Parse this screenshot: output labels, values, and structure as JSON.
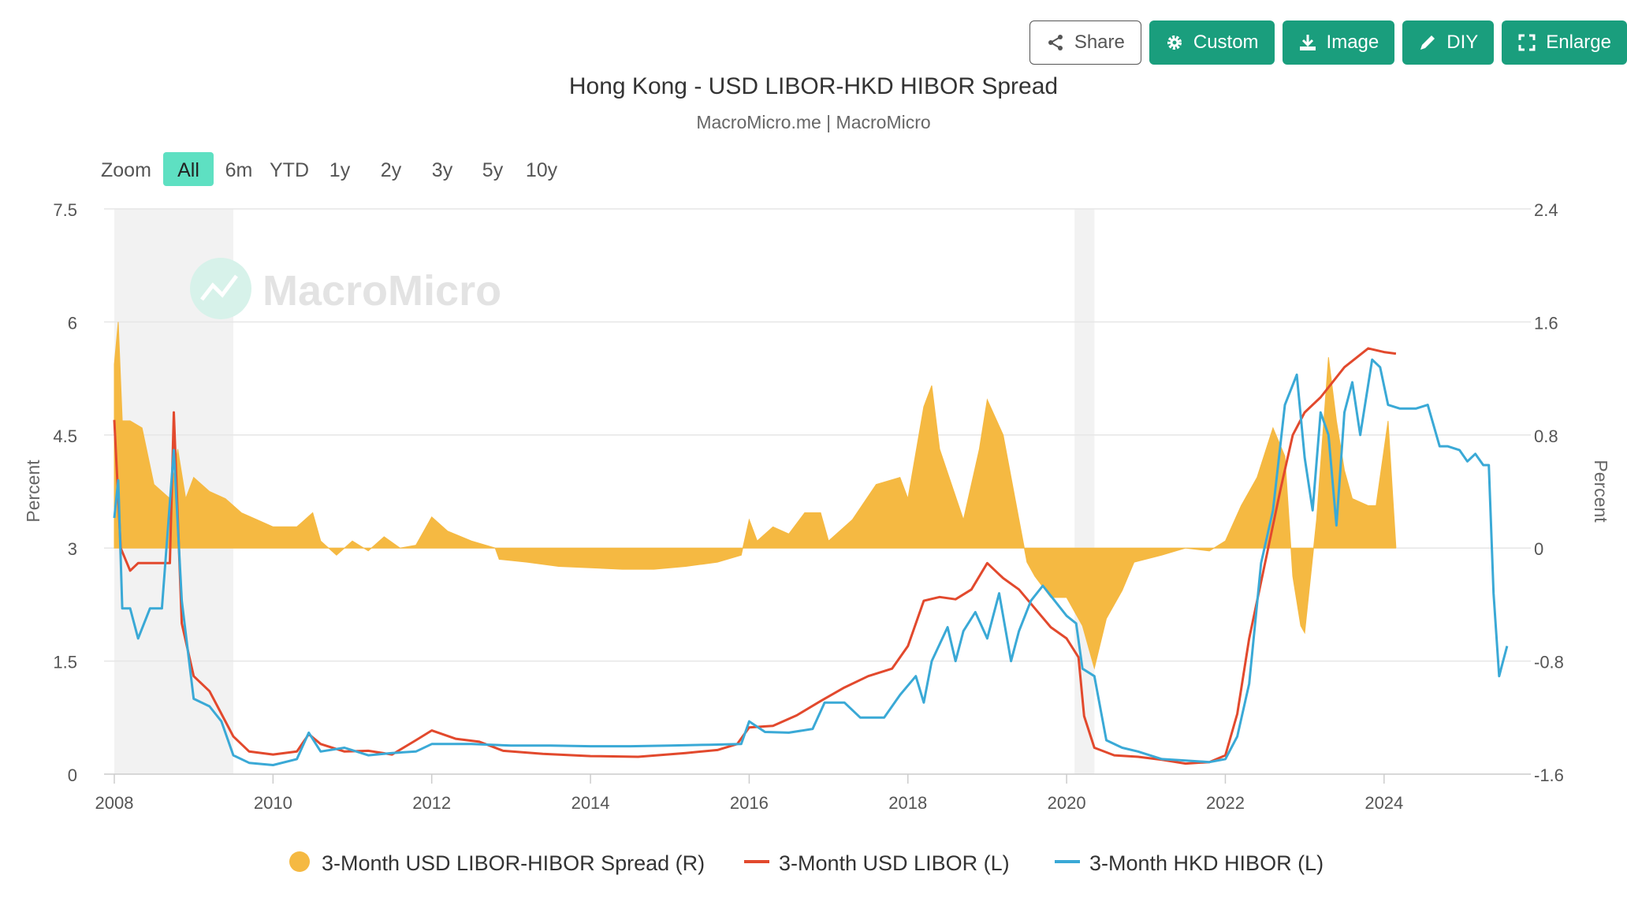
{
  "toolbar": {
    "share": {
      "label": "Share",
      "icon": "share-icon"
    },
    "custom": {
      "label": "Custom",
      "icon": "gear-icon"
    },
    "image": {
      "label": "Image",
      "icon": "download-icon"
    },
    "diy": {
      "label": "DIY",
      "icon": "pencil-icon"
    },
    "enlarge": {
      "label": "Enlarge",
      "icon": "expand-icon"
    }
  },
  "colors": {
    "accent": "#1a9e7d",
    "zoom_active": "#5ee0c2",
    "spread": "#f5b942",
    "libor": "#e2492d",
    "hibor": "#3aa9d6",
    "recession": "#f2f2f2"
  },
  "zoom": {
    "label": "Zoom",
    "options": [
      "All",
      "6m",
      "YTD",
      "1y",
      "2y",
      "3y",
      "5y",
      "10y"
    ],
    "selected": "All"
  },
  "watermark": "MacroMicro",
  "chart_data": {
    "type": "line",
    "title": "Hong Kong - USD LIBOR-HKD HIBOR Spread",
    "subtitle": "MacroMicro.me | MacroMicro",
    "xlim": [
      2008.0,
      2025.75
    ],
    "x_ticks": [
      "2008",
      "2010",
      "2012",
      "2014",
      "2016",
      "2018",
      "2020",
      "2022",
      "2024"
    ],
    "y_left": {
      "label": "Percent",
      "lim": [
        0,
        7.5
      ],
      "ticks": [
        "0",
        "1.5",
        "3",
        "4.5",
        "6",
        "7.5"
      ]
    },
    "y_right": {
      "label": "Percent",
      "lim": [
        -1.6,
        2.4
      ],
      "ticks": [
        "-1.6",
        "-0.8",
        "0",
        "0.8",
        "1.6",
        "2.4"
      ]
    },
    "recessions": [
      [
        2008.0,
        2009.5
      ],
      [
        2020.1,
        2020.35
      ]
    ],
    "legend_position": "bottom",
    "series": [
      {
        "name": "3-Month USD LIBOR-HIBOR Spread (R)",
        "axis": "right",
        "kind": "area",
        "color": "#f5b942",
        "points": [
          [
            2008.0,
            1.3
          ],
          [
            2008.05,
            1.6
          ],
          [
            2008.1,
            0.9
          ],
          [
            2008.2,
            0.9
          ],
          [
            2008.35,
            0.85
          ],
          [
            2008.5,
            0.45
          ],
          [
            2008.7,
            0.35
          ],
          [
            2008.8,
            0.7
          ],
          [
            2008.9,
            0.35
          ],
          [
            2009.0,
            0.5
          ],
          [
            2009.2,
            0.4
          ],
          [
            2009.4,
            0.35
          ],
          [
            2009.6,
            0.25
          ],
          [
            2009.8,
            0.2
          ],
          [
            2010.0,
            0.15
          ],
          [
            2010.3,
            0.15
          ],
          [
            2010.5,
            0.25
          ],
          [
            2010.6,
            0.05
          ],
          [
            2010.8,
            -0.05
          ],
          [
            2011.0,
            0.05
          ],
          [
            2011.2,
            -0.02
          ],
          [
            2011.4,
            0.08
          ],
          [
            2011.6,
            0.0
          ],
          [
            2011.8,
            0.02
          ],
          [
            2012.0,
            0.22
          ],
          [
            2012.2,
            0.12
          ],
          [
            2012.5,
            0.05
          ],
          [
            2012.8,
            0.0
          ],
          [
            2012.85,
            -0.08
          ],
          [
            2013.2,
            -0.1
          ],
          [
            2013.6,
            -0.13
          ],
          [
            2014.0,
            -0.14
          ],
          [
            2014.4,
            -0.15
          ],
          [
            2014.8,
            -0.15
          ],
          [
            2015.2,
            -0.13
          ],
          [
            2015.6,
            -0.1
          ],
          [
            2015.9,
            -0.05
          ],
          [
            2016.0,
            0.2
          ],
          [
            2016.1,
            0.05
          ],
          [
            2016.3,
            0.15
          ],
          [
            2016.5,
            0.1
          ],
          [
            2016.7,
            0.25
          ],
          [
            2016.9,
            0.25
          ],
          [
            2017.0,
            0.05
          ],
          [
            2017.3,
            0.2
          ],
          [
            2017.6,
            0.45
          ],
          [
            2017.9,
            0.5
          ],
          [
            2018.0,
            0.35
          ],
          [
            2018.2,
            1.0
          ],
          [
            2018.3,
            1.15
          ],
          [
            2018.4,
            0.7
          ],
          [
            2018.55,
            0.45
          ],
          [
            2018.7,
            0.2
          ],
          [
            2018.9,
            0.7
          ],
          [
            2019.0,
            1.05
          ],
          [
            2019.2,
            0.8
          ],
          [
            2019.4,
            0.2
          ],
          [
            2019.5,
            -0.1
          ],
          [
            2019.6,
            -0.2
          ],
          [
            2019.8,
            -0.35
          ],
          [
            2020.0,
            -0.35
          ],
          [
            2020.2,
            -0.55
          ],
          [
            2020.35,
            -0.85
          ],
          [
            2020.5,
            -0.5
          ],
          [
            2020.7,
            -0.3
          ],
          [
            2020.85,
            -0.1
          ],
          [
            2021.2,
            -0.05
          ],
          [
            2021.5,
            0.0
          ],
          [
            2021.8,
            -0.02
          ],
          [
            2022.0,
            0.05
          ],
          [
            2022.2,
            0.3
          ],
          [
            2022.4,
            0.5
          ],
          [
            2022.6,
            0.85
          ],
          [
            2022.75,
            0.65
          ],
          [
            2022.85,
            -0.2
          ],
          [
            2022.95,
            -0.55
          ],
          [
            2023.0,
            -0.6
          ],
          [
            2023.15,
            0.2
          ],
          [
            2023.3,
            1.35
          ],
          [
            2023.4,
            0.9
          ],
          [
            2023.5,
            0.55
          ],
          [
            2023.6,
            0.35
          ],
          [
            2023.8,
            0.3
          ],
          [
            2023.9,
            0.3
          ],
          [
            2024.05,
            0.9
          ],
          [
            2024.15,
            0.0
          ]
        ]
      },
      {
        "name": "3-Month USD LIBOR (L)",
        "axis": "left",
        "kind": "line",
        "color": "#e2492d",
        "points": [
          [
            2008.0,
            4.7
          ],
          [
            2008.08,
            3.0
          ],
          [
            2008.2,
            2.7
          ],
          [
            2008.3,
            2.8
          ],
          [
            2008.5,
            2.8
          ],
          [
            2008.7,
            2.8
          ],
          [
            2008.75,
            4.8
          ],
          [
            2008.85,
            2.0
          ],
          [
            2009.0,
            1.3
          ],
          [
            2009.2,
            1.1
          ],
          [
            2009.35,
            0.8
          ],
          [
            2009.5,
            0.5
          ],
          [
            2009.7,
            0.3
          ],
          [
            2010.0,
            0.26
          ],
          [
            2010.3,
            0.3
          ],
          [
            2010.45,
            0.53
          ],
          [
            2010.6,
            0.4
          ],
          [
            2010.9,
            0.3
          ],
          [
            2011.2,
            0.31
          ],
          [
            2011.5,
            0.26
          ],
          [
            2011.8,
            0.45
          ],
          [
            2012.0,
            0.58
          ],
          [
            2012.3,
            0.47
          ],
          [
            2012.6,
            0.43
          ],
          [
            2012.9,
            0.31
          ],
          [
            2013.4,
            0.27
          ],
          [
            2014.0,
            0.24
          ],
          [
            2014.6,
            0.23
          ],
          [
            2015.2,
            0.28
          ],
          [
            2015.6,
            0.32
          ],
          [
            2015.85,
            0.4
          ],
          [
            2016.0,
            0.62
          ],
          [
            2016.3,
            0.64
          ],
          [
            2016.6,
            0.78
          ],
          [
            2016.9,
            0.97
          ],
          [
            2017.2,
            1.15
          ],
          [
            2017.5,
            1.3
          ],
          [
            2017.8,
            1.4
          ],
          [
            2018.0,
            1.7
          ],
          [
            2018.2,
            2.3
          ],
          [
            2018.4,
            2.35
          ],
          [
            2018.6,
            2.32
          ],
          [
            2018.8,
            2.45
          ],
          [
            2019.0,
            2.8
          ],
          [
            2019.2,
            2.6
          ],
          [
            2019.4,
            2.45
          ],
          [
            2019.6,
            2.2
          ],
          [
            2019.8,
            1.95
          ],
          [
            2020.0,
            1.8
          ],
          [
            2020.15,
            1.55
          ],
          [
            2020.22,
            0.77
          ],
          [
            2020.35,
            0.35
          ],
          [
            2020.6,
            0.25
          ],
          [
            2020.9,
            0.23
          ],
          [
            2021.2,
            0.19
          ],
          [
            2021.5,
            0.14
          ],
          [
            2021.8,
            0.16
          ],
          [
            2022.0,
            0.25
          ],
          [
            2022.15,
            0.8
          ],
          [
            2022.3,
            1.8
          ],
          [
            2022.5,
            2.8
          ],
          [
            2022.7,
            3.8
          ],
          [
            2022.85,
            4.5
          ],
          [
            2023.0,
            4.8
          ],
          [
            2023.2,
            5.0
          ],
          [
            2023.5,
            5.4
          ],
          [
            2023.8,
            5.65
          ],
          [
            2024.0,
            5.6
          ],
          [
            2024.15,
            5.58
          ]
        ]
      },
      {
        "name": "3-Month HKD HIBOR (L)",
        "axis": "left",
        "kind": "line",
        "color": "#3aa9d6",
        "points": [
          [
            2008.0,
            3.4
          ],
          [
            2008.05,
            3.9
          ],
          [
            2008.1,
            2.2
          ],
          [
            2008.2,
            2.2
          ],
          [
            2008.3,
            1.8
          ],
          [
            2008.45,
            2.2
          ],
          [
            2008.6,
            2.2
          ],
          [
            2008.75,
            4.3
          ],
          [
            2008.85,
            2.3
          ],
          [
            2009.0,
            1.0
          ],
          [
            2009.2,
            0.9
          ],
          [
            2009.35,
            0.7
          ],
          [
            2009.5,
            0.25
          ],
          [
            2009.7,
            0.15
          ],
          [
            2010.0,
            0.12
          ],
          [
            2010.3,
            0.2
          ],
          [
            2010.45,
            0.55
          ],
          [
            2010.6,
            0.3
          ],
          [
            2010.9,
            0.35
          ],
          [
            2011.2,
            0.25
          ],
          [
            2011.5,
            0.28
          ],
          [
            2011.8,
            0.3
          ],
          [
            2012.0,
            0.4
          ],
          [
            2012.5,
            0.4
          ],
          [
            2013.0,
            0.38
          ],
          [
            2013.5,
            0.38
          ],
          [
            2014.0,
            0.37
          ],
          [
            2014.5,
            0.37
          ],
          [
            2015.0,
            0.38
          ],
          [
            2015.5,
            0.39
          ],
          [
            2015.9,
            0.4
          ],
          [
            2016.0,
            0.7
          ],
          [
            2016.2,
            0.56
          ],
          [
            2016.5,
            0.55
          ],
          [
            2016.8,
            0.6
          ],
          [
            2016.95,
            0.95
          ],
          [
            2017.2,
            0.95
          ],
          [
            2017.4,
            0.75
          ],
          [
            2017.7,
            0.75
          ],
          [
            2017.9,
            1.05
          ],
          [
            2018.1,
            1.3
          ],
          [
            2018.2,
            0.95
          ],
          [
            2018.3,
            1.5
          ],
          [
            2018.5,
            1.95
          ],
          [
            2018.6,
            1.5
          ],
          [
            2018.7,
            1.9
          ],
          [
            2018.85,
            2.15
          ],
          [
            2019.0,
            1.8
          ],
          [
            2019.15,
            2.4
          ],
          [
            2019.3,
            1.5
          ],
          [
            2019.4,
            1.9
          ],
          [
            2019.55,
            2.3
          ],
          [
            2019.7,
            2.5
          ],
          [
            2019.85,
            2.3
          ],
          [
            2020.0,
            2.1
          ],
          [
            2020.12,
            2.0
          ],
          [
            2020.2,
            1.4
          ],
          [
            2020.35,
            1.3
          ],
          [
            2020.5,
            0.45
          ],
          [
            2020.7,
            0.35
          ],
          [
            2020.9,
            0.3
          ],
          [
            2021.2,
            0.2
          ],
          [
            2021.5,
            0.18
          ],
          [
            2021.8,
            0.16
          ],
          [
            2022.0,
            0.2
          ],
          [
            2022.15,
            0.5
          ],
          [
            2022.3,
            1.2
          ],
          [
            2022.45,
            2.8
          ],
          [
            2022.6,
            3.5
          ],
          [
            2022.75,
            4.9
          ],
          [
            2022.9,
            5.3
          ],
          [
            2023.0,
            4.2
          ],
          [
            2023.1,
            3.5
          ],
          [
            2023.2,
            4.8
          ],
          [
            2023.3,
            4.5
          ],
          [
            2023.4,
            3.3
          ],
          [
            2023.5,
            4.8
          ],
          [
            2023.6,
            5.2
          ],
          [
            2023.7,
            4.5
          ],
          [
            2023.85,
            5.5
          ],
          [
            2023.95,
            5.4
          ],
          [
            2024.05,
            4.9
          ],
          [
            2024.2,
            4.85
          ],
          [
            2024.4,
            4.85
          ],
          [
            2024.55,
            4.9
          ],
          [
            2024.7,
            4.35
          ],
          [
            2024.8,
            4.35
          ],
          [
            2024.95,
            4.3
          ],
          [
            2025.05,
            4.15
          ],
          [
            2025.15,
            4.25
          ],
          [
            2025.25,
            4.1
          ],
          [
            2025.32,
            4.1
          ],
          [
            2025.38,
            2.4
          ],
          [
            2025.45,
            1.3
          ],
          [
            2025.5,
            1.5
          ],
          [
            2025.55,
            1.7
          ]
        ]
      }
    ]
  }
}
